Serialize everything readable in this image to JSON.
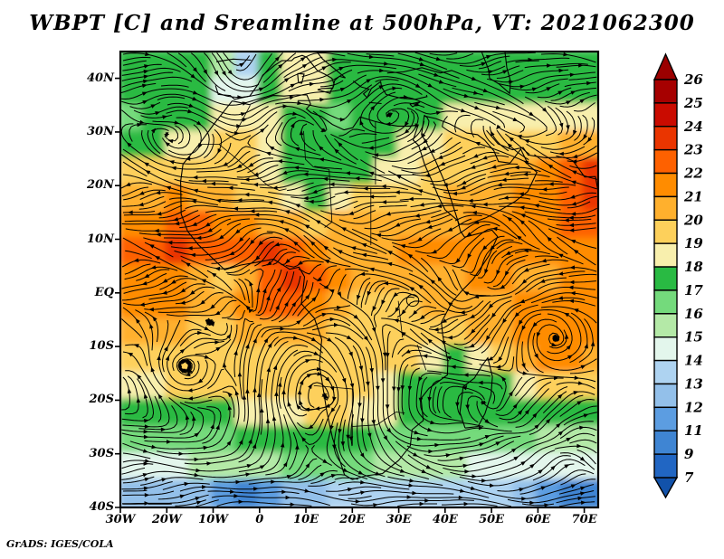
{
  "title": "WBPT [C] and Sreamline at 500hPa, VT: 2021062300",
  "credit": "GrADS: IGES/COLA",
  "axes": {
    "y_ticks": [
      {
        "label": "40N",
        "lat": 40
      },
      {
        "label": "30N",
        "lat": 30
      },
      {
        "label": "20N",
        "lat": 20
      },
      {
        "label": "10N",
        "lat": 10
      },
      {
        "label": "EQ",
        "lat": 0
      },
      {
        "label": "10S",
        "lat": -10
      },
      {
        "label": "20S",
        "lat": -20
      },
      {
        "label": "30S",
        "lat": -30
      },
      {
        "label": "40S",
        "lat": -40
      }
    ],
    "x_ticks": [
      {
        "label": "30W",
        "lon": -30
      },
      {
        "label": "20W",
        "lon": -20
      },
      {
        "label": "10W",
        "lon": -10
      },
      {
        "label": "0",
        "lon": 0
      },
      {
        "label": "10E",
        "lon": 10
      },
      {
        "label": "20E",
        "lon": 20
      },
      {
        "label": "30E",
        "lon": 30
      },
      {
        "label": "40E",
        "lon": 40
      },
      {
        "label": "50E",
        "lon": 50
      },
      {
        "label": "60E",
        "lon": 60
      },
      {
        "label": "70E",
        "lon": 70
      }
    ]
  },
  "colorbar": {
    "labels": [
      "26",
      "25",
      "24",
      "23",
      "22",
      "21",
      "20",
      "19",
      "18",
      "17",
      "16",
      "15",
      "14",
      "13",
      "12",
      "11",
      "9",
      "7"
    ],
    "segment_colors": [
      "#a60000",
      "#ca0b00",
      "#ea3500",
      "#fe6100",
      "#ff8c00",
      "#ffb02d",
      "#fdd05b",
      "#f8efad",
      "#29ba43",
      "#74da7c",
      "#b4e9a7",
      "#e3f6ec",
      "#aed3f1",
      "#93c0ea",
      "#5c9de1",
      "#3f85d3",
      "#2166c3"
    ],
    "arrow_top_color": "#9b0000",
    "arrow_bottom_color": "#1252aa"
  },
  "map": {
    "lon_min": -30,
    "lon_max": 73,
    "lat_min": -40,
    "lat_max": 45,
    "field": {
      "lon_edges": [
        -30,
        -25,
        -20,
        -15,
        -10,
        -5,
        0,
        5,
        10,
        15,
        20,
        25,
        30,
        35,
        40,
        45,
        50,
        55,
        60,
        65,
        70,
        75
      ],
      "lat_edges": [
        45,
        40,
        35,
        30,
        25,
        20,
        15,
        10,
        5,
        0,
        -5,
        -10,
        -15,
        -20,
        -25,
        -30,
        -35,
        -40
      ],
      "values": [
        [
          17,
          17,
          17,
          17,
          15,
          13,
          17,
          18,
          18,
          17,
          17,
          17,
          17,
          17,
          17,
          17,
          17,
          17,
          17,
          17,
          17
        ],
        [
          17,
          17,
          17,
          17,
          14,
          14,
          17,
          18,
          18,
          17,
          17,
          17,
          17,
          17,
          17,
          17,
          17,
          17,
          17,
          17,
          17
        ],
        [
          16,
          17,
          17,
          17,
          18,
          18,
          18,
          17,
          17,
          16,
          17,
          17,
          17,
          17,
          18,
          18,
          18,
          18,
          18,
          18,
          18
        ],
        [
          17,
          17,
          18,
          18,
          19,
          19,
          18,
          17,
          17,
          17,
          17,
          17,
          18,
          18,
          19,
          19,
          19,
          19,
          19,
          20,
          20
        ],
        [
          19,
          19,
          19,
          19,
          19,
          19,
          18,
          17,
          17,
          17,
          17,
          18,
          18,
          19,
          19,
          19,
          20,
          20,
          21,
          22,
          23
        ],
        [
          20,
          20,
          21,
          20,
          20,
          19,
          19,
          18,
          17,
          18,
          19,
          19,
          19,
          19,
          20,
          20,
          20,
          21,
          21,
          22,
          23
        ],
        [
          21,
          21,
          22,
          22,
          21,
          21,
          20,
          20,
          19,
          20,
          20,
          20,
          20,
          20,
          20,
          21,
          21,
          21,
          21,
          22,
          22
        ],
        [
          22,
          22,
          23,
          22,
          22,
          22,
          23,
          22,
          21,
          20,
          20,
          20,
          21,
          21,
          21,
          21,
          21,
          21,
          21,
          21,
          21
        ],
        [
          21,
          21,
          21,
          20,
          19,
          20,
          22,
          23,
          22,
          21,
          20,
          20,
          20,
          20,
          20,
          21,
          21,
          20,
          20,
          21,
          21
        ],
        [
          21,
          21,
          21,
          20,
          20,
          21,
          22,
          22,
          21,
          20,
          19,
          19,
          19,
          20,
          20,
          20,
          20,
          21,
          21,
          21,
          21
        ],
        [
          20,
          20,
          20,
          19,
          19,
          20,
          20,
          20,
          20,
          19,
          19,
          19,
          19,
          19,
          19,
          20,
          20,
          21,
          21,
          21,
          21
        ],
        [
          19,
          19,
          19,
          19,
          19,
          19,
          19,
          19,
          19,
          19,
          19,
          19,
          19,
          18,
          17,
          18,
          19,
          20,
          21,
          21,
          20
        ],
        [
          18,
          18,
          19,
          19,
          19,
          19,
          19,
          19,
          19,
          19,
          19,
          18,
          17,
          17,
          17,
          17,
          17,
          18,
          19,
          19,
          19
        ],
        [
          17,
          17,
          17,
          17,
          17,
          18,
          18,
          18,
          19,
          19,
          18,
          18,
          17,
          17,
          17,
          17,
          17,
          17,
          17,
          17,
          17
        ],
        [
          16,
          16,
          16,
          16,
          16,
          17,
          17,
          17,
          17,
          17,
          17,
          16,
          16,
          16,
          16,
          16,
          16,
          16,
          15,
          15,
          15
        ],
        [
          14,
          14,
          14,
          15,
          15,
          15,
          15,
          16,
          16,
          16,
          16,
          15,
          15,
          15,
          15,
          14,
          14,
          14,
          14,
          14,
          14
        ],
        [
          12,
          12,
          12,
          12,
          11,
          10,
          11,
          12,
          12,
          13,
          13,
          13,
          13,
          13,
          13,
          13,
          13,
          12,
          11,
          9,
          9
        ]
      ]
    }
  },
  "geo": {
    "coastlines": [
      [
        [
          -5.9,
          35.8
        ],
        [
          -9.8,
          31.5
        ],
        [
          -13,
          27.7
        ],
        [
          -16.5,
          24
        ],
        [
          -17,
          20.8
        ],
        [
          -16.9,
          14.7
        ],
        [
          -15.5,
          11.5
        ],
        [
          -13.2,
          9
        ],
        [
          -7.5,
          4.3
        ],
        [
          -4,
          5.2
        ],
        [
          0,
          5.8
        ],
        [
          3,
          6.3
        ],
        [
          6.5,
          4.4
        ],
        [
          8.5,
          4.8
        ],
        [
          9.7,
          3
        ],
        [
          9.3,
          0
        ],
        [
          9,
          -2
        ],
        [
          11.8,
          -4.7
        ],
        [
          13.4,
          -8.7
        ],
        [
          12.9,
          -13.4
        ],
        [
          14.5,
          -22.1
        ],
        [
          15.7,
          -27
        ],
        [
          18.3,
          -33.9
        ],
        [
          20,
          -34.8
        ],
        [
          23,
          -34.1
        ],
        [
          26.5,
          -33.7
        ],
        [
          30,
          -31.2
        ],
        [
          32.5,
          -28.5
        ],
        [
          32.9,
          -25.5
        ],
        [
          35.3,
          -23.8
        ],
        [
          34.8,
          -19.7
        ],
        [
          36.5,
          -17.8
        ],
        [
          40.5,
          -15.3
        ],
        [
          40.6,
          -12.8
        ],
        [
          39.5,
          -8
        ],
        [
          39.2,
          -5.5
        ],
        [
          41.5,
          -1.7
        ],
        [
          43.5,
          0.3
        ],
        [
          46,
          2.5
        ],
        [
          49.5,
          7
        ],
        [
          51.3,
          10.5
        ],
        [
          50.1,
          11.7
        ],
        [
          44.2,
          10.4
        ],
        [
          43.3,
          11.5
        ],
        [
          42.7,
          13.5
        ],
        [
          40,
          15.5
        ],
        [
          38.5,
          18.1
        ],
        [
          37.2,
          20.8
        ],
        [
          35.6,
          23.9
        ],
        [
          34.3,
          27.5
        ],
        [
          33.1,
          28.5
        ],
        [
          34.2,
          31.3
        ],
        [
          32.3,
          31.1
        ],
        [
          29.8,
          31.1
        ],
        [
          27,
          31.5
        ],
        [
          24.8,
          32
        ],
        [
          21.7,
          32.8
        ],
        [
          20.1,
          30.8
        ],
        [
          18.2,
          30.4
        ],
        [
          15.7,
          31.4
        ],
        [
          13.3,
          32.9
        ],
        [
          11.1,
          33.6
        ],
        [
          10.1,
          34.3
        ],
        [
          11,
          35.2
        ],
        [
          10.2,
          36.9
        ],
        [
          8,
          36.9
        ],
        [
          5.3,
          36.7
        ],
        [
          2.9,
          36.8
        ],
        [
          0,
          35.9
        ],
        [
          -2.2,
          35.1
        ],
        [
          -5.9,
          35.8
        ]
      ],
      [
        [
          34.9,
          29.5
        ],
        [
          36,
          28
        ],
        [
          38,
          24.5
        ],
        [
          40.5,
          19.5
        ],
        [
          43,
          12.8
        ],
        [
          45,
          12.8
        ],
        [
          48.8,
          14
        ],
        [
          52.2,
          15.6
        ],
        [
          55,
          17
        ],
        [
          57.8,
          18.9
        ],
        [
          59.8,
          22.5
        ],
        [
          58,
          23.8
        ],
        [
          56.3,
          26.8
        ],
        [
          54,
          24.2
        ],
        [
          51.5,
          24.5
        ],
        [
          50.5,
          26.5
        ],
        [
          48.5,
          28.5
        ],
        [
          47,
          29.5
        ],
        [
          44.7,
          29.8
        ],
        [
          41,
          31.5
        ],
        [
          38,
          32.5
        ],
        [
          35.5,
          33
        ],
        [
          34.9,
          29.5
        ]
      ],
      [
        [
          -9.5,
          38.7
        ],
        [
          -8.9,
          37
        ],
        [
          -6.3,
          36.8
        ],
        [
          -5.4,
          36.1
        ],
        [
          -2.1,
          36.7
        ],
        [
          -0.3,
          38.9
        ],
        [
          0.7,
          40.6
        ],
        [
          3.2,
          42.4
        ]
      ],
      [
        [
          -9.3,
          43.1
        ],
        [
          -5.7,
          43.6
        ],
        [
          -1.8,
          43.4
        ]
      ],
      [
        [
          3.2,
          42.4
        ],
        [
          4.8,
          43.3
        ],
        [
          6.9,
          43.3
        ],
        [
          7.5,
          43.8
        ],
        [
          9.2,
          44.3
        ],
        [
          10.2,
          43.9
        ],
        [
          12.5,
          41.4
        ],
        [
          14,
          40.8
        ],
        [
          15.6,
          40
        ],
        [
          16.1,
          38.9
        ],
        [
          15.7,
          38
        ],
        [
          16.2,
          39.6
        ],
        [
          17.2,
          40.4
        ],
        [
          18.5,
          40.1
        ],
        [
          16,
          41.9
        ],
        [
          13.6,
          43.6
        ],
        [
          12.4,
          44.9
        ]
      ],
      [
        [
          12.5,
          37.9
        ],
        [
          15.2,
          37.2
        ],
        [
          15.6,
          38.2
        ],
        [
          13.4,
          38.1
        ],
        [
          12.5,
          37.9
        ]
      ],
      [
        [
          8.2,
          40.9
        ],
        [
          9.6,
          40.8
        ],
        [
          9.1,
          39.1
        ],
        [
          8.4,
          39.2
        ],
        [
          8.2,
          40.9
        ]
      ],
      [
        [
          20.2,
          39.5
        ],
        [
          21.9,
          38.4
        ],
        [
          23.6,
          38
        ],
        [
          22.4,
          37.1
        ],
        [
          23.2,
          36.4
        ],
        [
          24.1,
          38.1
        ],
        [
          26.1,
          39.4
        ],
        [
          26.3,
          38.4
        ],
        [
          27.3,
          37
        ],
        [
          28.6,
          36.7
        ],
        [
          30.6,
          36.3
        ],
        [
          33.6,
          36.1
        ],
        [
          36.1,
          36.6
        ],
        [
          36,
          36.9
        ]
      ],
      [
        [
          23.6,
          35.5
        ],
        [
          26.3,
          35.3
        ]
      ],
      [
        [
          32.4,
          35.2
        ],
        [
          34.6,
          35.6
        ],
        [
          33,
          34.7
        ],
        [
          32.4,
          35.2
        ]
      ],
      [
        [
          44.3,
          -25.2
        ],
        [
          43.2,
          -22.3
        ],
        [
          43.9,
          -17.5
        ],
        [
          46.3,
          -15.9
        ],
        [
          48,
          -13.5
        ],
        [
          49.2,
          -12.1
        ],
        [
          50.2,
          -15.6
        ],
        [
          49.9,
          -19
        ],
        [
          48.6,
          -22.5
        ],
        [
          47.1,
          -24.9
        ],
        [
          44.3,
          -25.2
        ]
      ],
      [
        [
          47.9,
          44.9
        ],
        [
          49.3,
          41.8
        ],
        [
          49.6,
          40
        ],
        [
          51.7,
          38.9
        ],
        [
          53.9,
          37.2
        ],
        [
          54.1,
          39.5
        ],
        [
          53.3,
          42
        ],
        [
          52.9,
          44.9
        ]
      ],
      [
        [
          48.9,
          30.3
        ],
        [
          51.4,
          27.8
        ],
        [
          54.5,
          26.7
        ],
        [
          56.8,
          27.1
        ],
        [
          57.9,
          25.7
        ],
        [
          61.7,
          25.2
        ],
        [
          65.6,
          25.3
        ],
        [
          67.6,
          24.6
        ],
        [
          70.1,
          21.6
        ],
        [
          72.4,
          21.7
        ],
        [
          72.9,
          19.3
        ]
      ],
      [
        [
          27.5,
          41
        ],
        [
          31,
          41.2
        ],
        [
          35,
          42
        ],
        [
          39,
          41
        ],
        [
          41.5,
          41.5
        ]
      ]
    ],
    "borders": [
      [
        [
          -8.7,
          27.7
        ],
        [
          -13,
          27.7
        ]
      ],
      [
        [
          -2,
          35
        ],
        [
          -5.3,
          29.6
        ],
        [
          -8.7,
          27.7
        ]
      ],
      [
        [
          -8.7,
          27.7
        ],
        [
          -4.8,
          24.9
        ],
        [
          1.8,
          20
        ],
        [
          4.3,
          19.1
        ],
        [
          5.8,
          19.4
        ]
      ],
      [
        [
          9.5,
          30.2
        ],
        [
          9.9,
          24.9
        ],
        [
          11.6,
          23.5
        ],
        [
          15,
          23
        ]
      ],
      [
        [
          25,
          31.9
        ],
        [
          25,
          20.2
        ]
      ],
      [
        [
          25,
          22
        ],
        [
          34.1,
          22
        ]
      ],
      [
        [
          24,
          19.6
        ],
        [
          24,
          8.9
        ]
      ],
      [
        [
          15,
          23
        ],
        [
          15.6,
          13.2
        ],
        [
          14,
          12.2
        ]
      ],
      [
        [
          11.7,
          -17.3
        ],
        [
          20,
          -17.9
        ],
        [
          20,
          -28.4
        ]
      ],
      [
        [
          20,
          -24.9
        ],
        [
          25.3,
          -24.6
        ],
        [
          29.4,
          -22.2
        ],
        [
          31.3,
          -22.4
        ]
      ],
      [
        [
          29.9,
          -1.5
        ],
        [
          30.8,
          -8.3
        ]
      ],
      [
        [
          34,
          -9.7
        ],
        [
          35.9,
          -14.4
        ]
      ]
    ],
    "lakes": [
      {
        "lon": 33,
        "lat": -1.4,
        "rlon": 1.3,
        "rlat": 1.1
      }
    ]
  }
}
